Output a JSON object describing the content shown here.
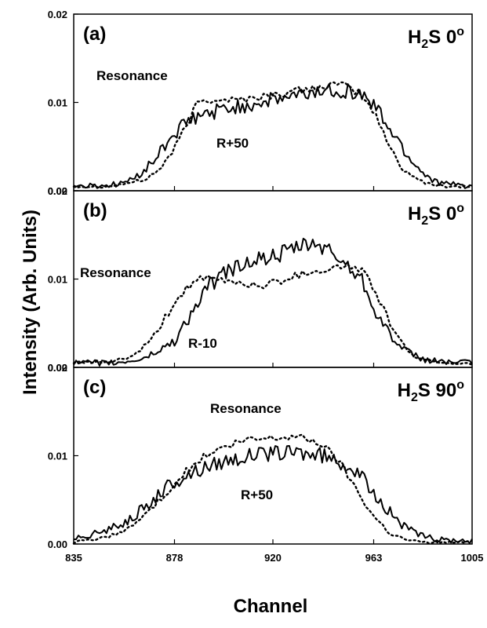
{
  "chart_data": [
    {
      "panel": "(a)",
      "type": "line",
      "title": {
        "pre": "H",
        "sub": "2",
        "post": "S 0",
        "sup": "o"
      },
      "xlim": [
        835,
        1005
      ],
      "ylim": [
        0,
        0.02
      ],
      "yticks": [
        "0.00",
        "0.01",
        "0.02"
      ],
      "series": [
        {
          "name": "Resonance",
          "style": "dotted",
          "x": [
            835,
            850,
            865,
            872,
            878,
            884,
            888,
            895,
            905,
            920,
            935,
            945,
            952,
            957,
            963,
            968,
            975,
            985,
            995,
            1005
          ],
          "y": [
            0.0005,
            0.0005,
            0.0012,
            0.0025,
            0.0048,
            0.0078,
            0.0101,
            0.0104,
            0.0103,
            0.0108,
            0.0115,
            0.012,
            0.0118,
            0.011,
            0.009,
            0.006,
            0.0025,
            0.0008,
            0.0005,
            0.0005
          ]
        },
        {
          "name": "R+50",
          "style": "solid",
          "x": [
            835,
            850,
            860,
            868,
            875,
            878,
            885,
            895,
            905,
            915,
            925,
            935,
            945,
            952,
            958,
            963,
            970,
            978,
            985,
            992,
            1005
          ],
          "y": [
            0.0005,
            0.0006,
            0.0012,
            0.003,
            0.0055,
            0.0065,
            0.008,
            0.009,
            0.0095,
            0.01,
            0.0105,
            0.011,
            0.0115,
            0.0113,
            0.0108,
            0.0098,
            0.007,
            0.0038,
            0.0018,
            0.0008,
            0.0005
          ]
        }
      ],
      "annotations": [
        "Resonance",
        "R+50"
      ]
    },
    {
      "panel": "(b)",
      "type": "line",
      "title": {
        "pre": "H",
        "sub": "2",
        "post": "S 0",
        "sup": "o"
      },
      "xlim": [
        835,
        1005
      ],
      "ylim": [
        0,
        0.02
      ],
      "yticks": [
        "0.00",
        "0.01",
        "0.02"
      ],
      "series": [
        {
          "name": "Resonance",
          "style": "dotted",
          "x": [
            835,
            850,
            860,
            868,
            875,
            880,
            885,
            890,
            900,
            915,
            925,
            935,
            945,
            952,
            958,
            963,
            970,
            978,
            990,
            1005
          ],
          "y": [
            0.0005,
            0.0006,
            0.0012,
            0.003,
            0.006,
            0.008,
            0.0095,
            0.01,
            0.0098,
            0.0092,
            0.01,
            0.0108,
            0.0112,
            0.0115,
            0.011,
            0.009,
            0.005,
            0.0015,
            0.0005,
            0.0005
          ]
        },
        {
          "name": "R-10",
          "style": "solid",
          "x": [
            835,
            855,
            865,
            872,
            878,
            885,
            892,
            900,
            910,
            920,
            930,
            938,
            945,
            952,
            958,
            963,
            968,
            975,
            985,
            1005
          ],
          "y": [
            0.0005,
            0.0005,
            0.001,
            0.002,
            0.003,
            0.006,
            0.009,
            0.0108,
            0.012,
            0.0125,
            0.0135,
            0.014,
            0.013,
            0.0115,
            0.01,
            0.007,
            0.0045,
            0.002,
            0.0008,
            0.0005
          ]
        }
      ],
      "annotations": [
        "Resonance",
        "R-10"
      ]
    },
    {
      "panel": "(c)",
      "type": "line",
      "title": {
        "pre": "H",
        "sub": "2",
        "post": "S 90",
        "sup": "o"
      },
      "xlim": [
        835,
        1005
      ],
      "ylim": [
        0,
        0.02
      ],
      "xticks": [
        "835",
        "878",
        "920",
        "963",
        "1005"
      ],
      "yticks": [
        "0.00",
        "0.01",
        "0.02"
      ],
      "series": [
        {
          "name": "Resonance",
          "style": "dotted",
          "x": [
            835,
            850,
            860,
            870,
            880,
            890,
            900,
            910,
            920,
            930,
            940,
            948,
            955,
            962,
            970,
            978,
            985,
            995,
            1005
          ],
          "y": [
            0.0002,
            0.0008,
            0.002,
            0.0045,
            0.0075,
            0.0098,
            0.011,
            0.0118,
            0.012,
            0.0122,
            0.0115,
            0.0095,
            0.0065,
            0.0035,
            0.0012,
            0.0004,
            0.0002,
            0.0002,
            0.0002
          ]
        },
        {
          "name": "R+50",
          "style": "solid",
          "x": [
            835,
            845,
            855,
            865,
            872,
            878,
            885,
            892,
            900,
            910,
            920,
            930,
            940,
            948,
            955,
            962,
            968,
            975,
            982,
            990,
            1005
          ],
          "y": [
            0.0008,
            0.0012,
            0.0022,
            0.004,
            0.0058,
            0.007,
            0.008,
            0.0088,
            0.0095,
            0.01,
            0.0102,
            0.0104,
            0.01,
            0.0095,
            0.0082,
            0.0062,
            0.0042,
            0.0022,
            0.001,
            0.0005,
            0.0004
          ]
        }
      ],
      "annotations": [
        "Resonance",
        "R+50"
      ]
    }
  ],
  "axes": {
    "ylabel": "Intensity (Arb. Units)",
    "xlabel": "Channel"
  }
}
